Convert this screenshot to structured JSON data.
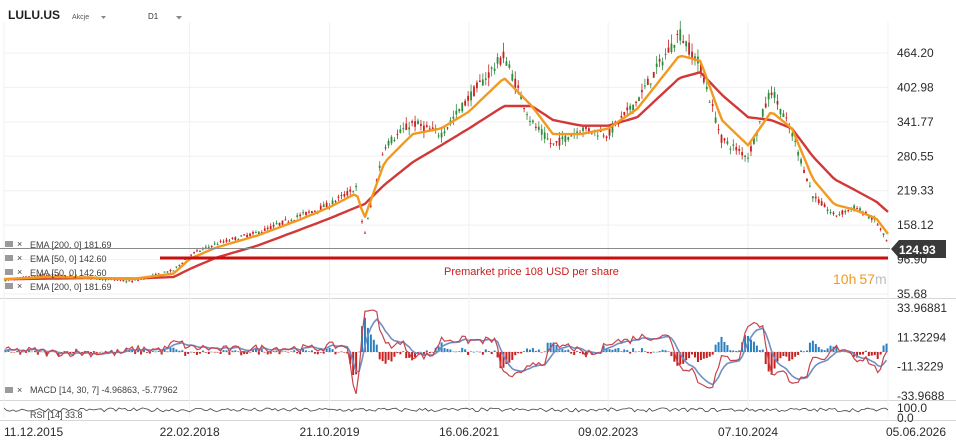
{
  "header": {
    "symbol": "LULU.US",
    "asset_class": "Akcje",
    "timeframe": "D1"
  },
  "colors": {
    "candle_up": "#2e8b3d",
    "candle_down": "#c82020",
    "ema_fast": "#f29a1f",
    "ema_slow": "#d23838",
    "support_line": "#c80f0f",
    "price_tag_bg": "#3a3a3a",
    "macd_pos": "#2a7fc0",
    "macd_neg": "#c82020",
    "macd_line": "#c8434b",
    "signal_line": "#6f8fc3",
    "rsi_line": "#404040"
  },
  "indicators": {
    "ema200_label": "EMA [200, 0] 181.69",
    "ema50_label": "EMA [50, 0] 142.60",
    "ema50_label_dup": "EMA [50, 0] 142.60",
    "ema200_label_dup": "EMA [200, 0] 181.69",
    "macd_label": "MACD [14, 30, 7] -4.96863, -5.77962",
    "rsi_label": "RSI [14] 33.8"
  },
  "annotation": {
    "text": "Premarket price 108 USD per share",
    "value": 108
  },
  "current_price": "124.93",
  "countdown": {
    "hours": "10",
    "h_unit": "h",
    "minutes": "57",
    "m_unit": "m"
  },
  "chart_data": {
    "type": "line",
    "title": "",
    "xlabel": "",
    "ylabel": "",
    "ylim": [
      35.68,
      525
    ],
    "y_ticks": [
      "464.20",
      "402.98",
      "341.77",
      "280.55",
      "219.33",
      "158.12",
      "96.90",
      "35.68"
    ],
    "y_tick_values": [
      464.2,
      402.98,
      341.77,
      280.55,
      219.33,
      158.12,
      96.9,
      35.68
    ],
    "x_ticks": [
      "11.12.2015",
      "22.02.2018",
      "21.10.2019",
      "16.06.2021",
      "09.02.2023",
      "07.10.2024",
      "05.06.2026"
    ],
    "x": [
      "2015-12-11",
      "2016-06-15",
      "2016-12-15",
      "2017-06-15",
      "2017-12-15",
      "2018-02-22",
      "2018-06-15",
      "2018-12-15",
      "2019-06-15",
      "2019-10-21",
      "2020-02-15",
      "2020-03-20",
      "2020-06-15",
      "2020-10-15",
      "2021-02-15",
      "2021-06-16",
      "2021-11-15",
      "2022-03-15",
      "2022-06-15",
      "2022-10-15",
      "2023-02-09",
      "2023-06-15",
      "2023-12-15",
      "2024-03-15",
      "2024-06-15",
      "2024-10-07",
      "2025-01-15",
      "2025-04-15",
      "2025-07-15",
      "2025-10-15",
      "2026-01-15",
      "2026-04-15",
      "2026-06-05"
    ],
    "series": [
      {
        "name": "LULU.US",
        "values": [
          60,
          70,
          65,
          58,
          78,
          105,
          125,
          145,
          175,
          195,
          225,
          140,
          300,
          340,
          320,
          385,
          460,
          340,
          300,
          330,
          320,
          380,
          500,
          440,
          310,
          280,
          400,
          320,
          210,
          175,
          190,
          165,
          125
        ]
      },
      {
        "name": "EMA [50, 0]",
        "values": [
          62,
          66,
          65,
          62,
          72,
          98,
          118,
          140,
          168,
          190,
          215,
          170,
          270,
          320,
          330,
          360,
          420,
          370,
          320,
          320,
          330,
          365,
          460,
          450,
          345,
          300,
          360,
          330,
          240,
          195,
          185,
          170,
          142.6
        ]
      },
      {
        "name": "EMA [200, 0]",
        "values": [
          62,
          63,
          64,
          63,
          66,
          80,
          100,
          122,
          150,
          170,
          190,
          195,
          230,
          270,
          300,
          330,
          370,
          370,
          345,
          335,
          335,
          350,
          420,
          430,
          390,
          350,
          345,
          330,
          280,
          240,
          220,
          200,
          181.69
        ]
      }
    ],
    "macd": {
      "ylim": [
        -33.9688,
        33.96881
      ],
      "y_ticks": [
        "33.96881",
        "11.32294",
        "-11.3229",
        "-33.9688"
      ],
      "macd_last": -4.96863,
      "signal_last": -5.77962
    },
    "rsi": {
      "ylim": [
        0,
        100
      ],
      "y_ticks": [
        "100.0",
        "0.0"
      ],
      "last": 33.8
    }
  }
}
